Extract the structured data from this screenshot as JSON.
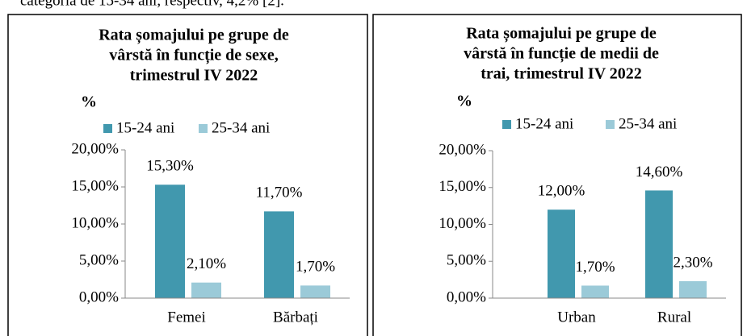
{
  "text_above": "categoria de 15-34 ani, respectiv, 4,2% [2].",
  "chart_data": [
    {
      "type": "bar",
      "title": [
        "Rata șomajului  pe grupe de",
        "vârstă în funcție de sexe,",
        "trimestrul IV 2022"
      ],
      "y_label": "%",
      "categories": [
        "Femei",
        "Bărbați"
      ],
      "series": [
        {
          "name": "15-24 ani",
          "color": "#4198ae",
          "values": [
            15.3,
            11.7
          ],
          "value_labels": [
            "15,30%",
            "11,70%"
          ]
        },
        {
          "name": "25-34 ani",
          "color": "#9bcad8",
          "values": [
            2.1,
            1.7
          ],
          "value_labels": [
            "2,10%",
            "1,70%"
          ]
        }
      ],
      "ylim": [
        0,
        20
      ],
      "yticks": [
        {
          "value": 0,
          "label": "0,00%"
        },
        {
          "value": 5,
          "label": "5,00%"
        },
        {
          "value": 10,
          "label": "10,00%"
        },
        {
          "value": 15,
          "label": "15,00%"
        },
        {
          "value": 20,
          "label": "20,00%"
        }
      ],
      "legend": "top",
      "grid": false
    },
    {
      "type": "bar",
      "title": [
        "Rata șomajului  pe grupe de",
        "vârstă în funcție de medii de",
        "trai, trimestrul IV 2022"
      ],
      "y_label": "%",
      "categories": [
        "Urban",
        "Rural"
      ],
      "series": [
        {
          "name": "15-24 ani",
          "color": "#4198ae",
          "values": [
            12.0,
            14.6
          ],
          "value_labels": [
            "12,00%",
            "14,60%"
          ]
        },
        {
          "name": "25-34 ani",
          "color": "#9bcad8",
          "values": [
            1.7,
            2.3
          ],
          "value_labels": [
            "1,70%",
            "2,30%"
          ]
        }
      ],
      "ylim": [
        0,
        20
      ],
      "yticks": [
        {
          "value": 0,
          "label": "0,00%"
        },
        {
          "value": 5,
          "label": "5,00%"
        },
        {
          "value": 10,
          "label": "10,00%"
        },
        {
          "value": 15,
          "label": "15,00%"
        },
        {
          "value": 20,
          "label": "20,00%"
        }
      ],
      "legend": "top",
      "grid": false
    }
  ]
}
